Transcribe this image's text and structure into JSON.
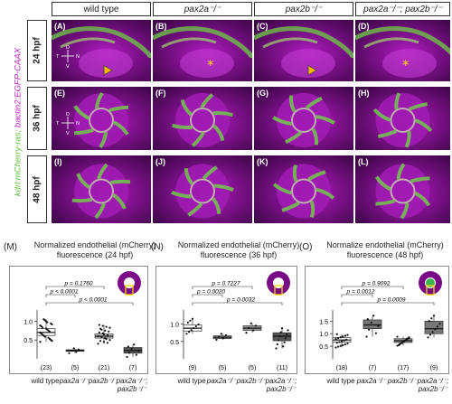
{
  "columns": {
    "c1": "wild type",
    "c2": "pax2a⁻/⁻",
    "c3": "pax2b⁻/⁻",
    "c4": "pax2a⁻/⁻; pax2b⁻/⁻"
  },
  "ylabel": {
    "green": "kdrl:mCherry-ras;",
    "magenta": "bactin2:EGFP-CAAX"
  },
  "rows": {
    "r1": "24 hpf",
    "r2": "36 hpf",
    "r3": "48 hpf"
  },
  "panels": {
    "A": "(A)",
    "B": "(B)",
    "C": "(C)",
    "D": "(D)",
    "E": "(E)",
    "F": "(F)",
    "G": "(G)",
    "H": "(H)",
    "I": "(I)",
    "J": "(J)",
    "K": "(K)",
    "L": "(L)"
  },
  "axes_legend": {
    "d": "D",
    "v": "V",
    "t": "T",
    "n": "N"
  },
  "graphs": {
    "M": {
      "letter": "(M)",
      "title": "Normalized endothelial (mCherry) fluorescence (24 hpf)",
      "yticks": [
        "0.5",
        "1.0"
      ],
      "pvals": [
        "p = 0.1760",
        "p < 0.0001",
        "p < 0.0001"
      ],
      "counts": [
        "(23)",
        "(5)",
        "(21)",
        "(7)"
      ]
    },
    "N": {
      "letter": "(N)",
      "title": "Normalized endothelial (mCherry) fluorescence (36 hpf)",
      "yticks": [
        "0.5",
        "1.0"
      ],
      "pvals": [
        "p = 0.7227",
        "p = 0.0020",
        "p = 0.0032"
      ],
      "counts": [
        "(9)",
        "(5)",
        "(5)",
        "(11)"
      ]
    },
    "O": {
      "letter": "(O)",
      "title": "Normalize endothelial (mCherry) fluorescence (48 hpf)",
      "yticks": [
        "0.5",
        "1.0",
        "1.5"
      ],
      "pvals": [
        "p = 0.9092",
        "p = 0.0012",
        "p = 0.0009"
      ],
      "counts": [
        "(18)",
        "(7)",
        "(17)",
        "(9)"
      ]
    }
  },
  "xlabels": {
    "wt": "wild type",
    "a": "pax2a⁻/⁻",
    "b": "pax2b⁻/⁻",
    "ab1": "pax2a⁻/⁻;",
    "ab2": "pax2b⁻/⁻"
  },
  "chart_data": [
    {
      "type": "box",
      "title": "Normalized endothelial (mCherry) fluorescence (24 hpf)",
      "categories": [
        "wild type",
        "pax2a-/-",
        "pax2b-/-",
        "pax2a-/-; pax2b-/-"
      ],
      "medians": [
        0.7,
        0.22,
        0.6,
        0.22
      ],
      "ylim": [
        0,
        1.2
      ],
      "n": [
        23,
        5,
        21,
        7
      ]
    },
    {
      "type": "box",
      "title": "Normalized endothelial (mCherry) fluorescence (36 hpf)",
      "categories": [
        "wild type",
        "pax2a-/-",
        "pax2b-/-",
        "pax2a-/-; pax2b-/-"
      ],
      "medians": [
        0.88,
        0.62,
        0.88,
        0.65
      ],
      "ylim": [
        0,
        1.3
      ],
      "n": [
        9,
        5,
        5,
        11
      ]
    },
    {
      "type": "box",
      "title": "Normalize endothelial (mCherry) fluorescence (48 hpf)",
      "categories": [
        "wild type",
        "pax2a-/-",
        "pax2b-/-",
        "pax2a-/-; pax2b-/-"
      ],
      "medians": [
        0.75,
        1.35,
        0.72,
        1.2
      ],
      "ylim": [
        0,
        1.8
      ],
      "n": [
        18,
        7,
        17,
        9
      ]
    }
  ]
}
